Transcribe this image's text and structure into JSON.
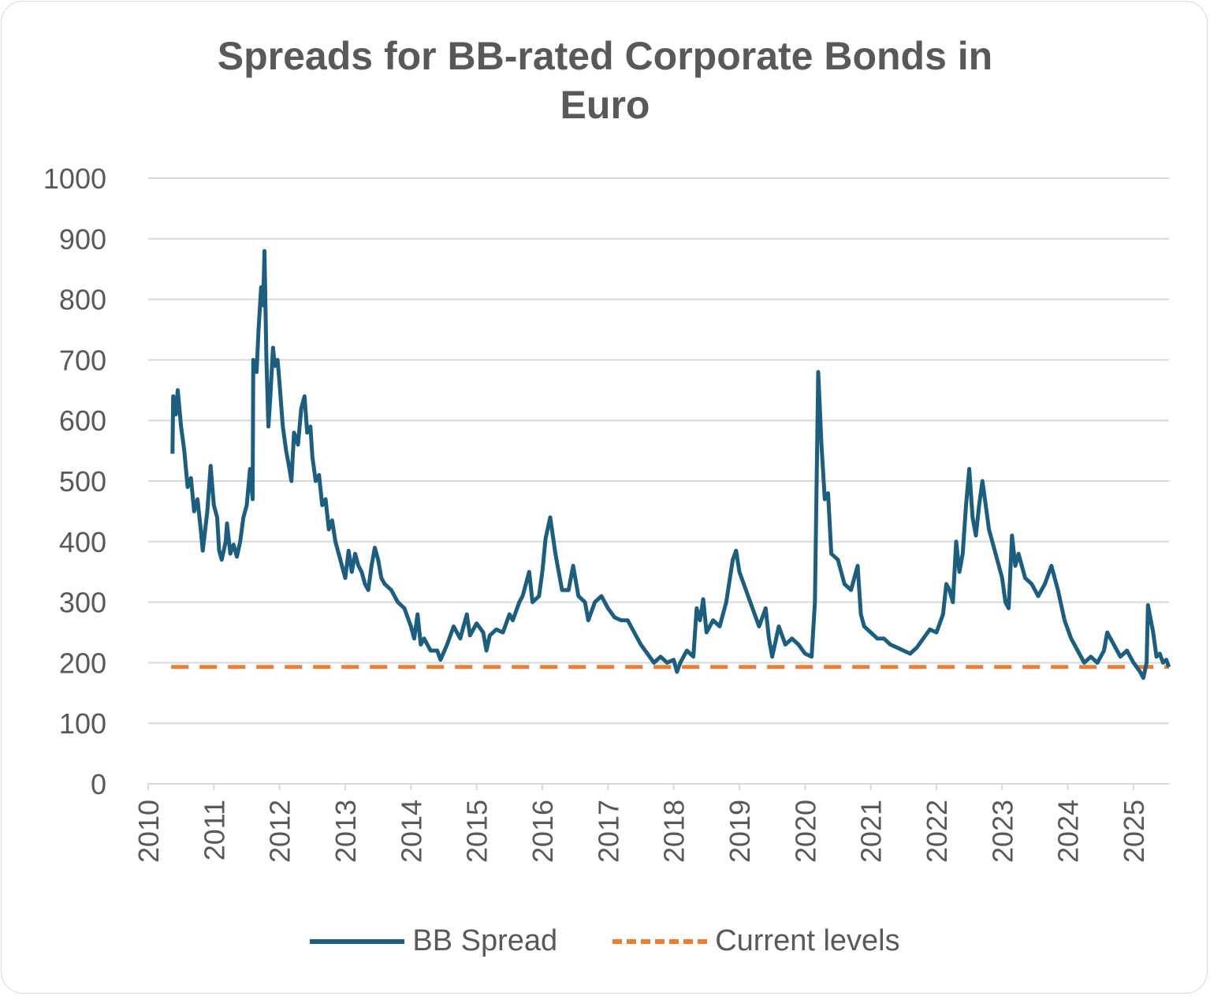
{
  "chart_data": {
    "type": "line",
    "title": "Spreads for BB-rated Corporate Bonds in Euro",
    "title_lines": [
      "Spreads for BB-rated Corporate Bonds in",
      "Euro"
    ],
    "xlabel": "",
    "ylabel": "",
    "ylim": [
      0,
      1000
    ],
    "xlim": [
      2010,
      2025.54
    ],
    "y_ticks": [
      "0",
      "100",
      "200",
      "300",
      "400",
      "500",
      "600",
      "700",
      "800",
      "900",
      "1000"
    ],
    "x_ticks": [
      "2010",
      "2011",
      "2012",
      "2013",
      "2014",
      "2015",
      "2016",
      "2017",
      "2018",
      "2019",
      "2020",
      "2021",
      "2022",
      "2023",
      "2024",
      "2025"
    ],
    "grid": "horizontal",
    "legend_position": "bottom",
    "colors": {
      "bb_spread": "#1b5e7f",
      "current_levels": "#ed7d31",
      "grid": "#d9d9d9",
      "text": "#595959"
    },
    "series": [
      {
        "name": "BB Spread",
        "style": "solid",
        "x": [
          2010.37,
          2010.38,
          2010.42,
          2010.45,
          2010.5,
          2010.55,
          2010.6,
          2010.65,
          2010.7,
          2010.75,
          2010.8,
          2010.83,
          2010.9,
          2010.95,
          2011.0,
          2011.05,
          2011.08,
          2011.12,
          2011.18,
          2011.2,
          2011.25,
          2011.3,
          2011.35,
          2011.4,
          2011.45,
          2011.5,
          2011.55,
          2011.59,
          2011.6,
          2011.65,
          2011.68,
          2011.72,
          2011.75,
          2011.77,
          2011.8,
          2011.83,
          2011.86,
          2011.9,
          2011.93,
          2011.97,
          2012.0,
          2012.05,
          2012.1,
          2012.15,
          2012.18,
          2012.22,
          2012.28,
          2012.33,
          2012.38,
          2012.42,
          2012.47,
          2012.5,
          2012.55,
          2012.6,
          2012.65,
          2012.7,
          2012.75,
          2012.8,
          2012.85,
          2012.9,
          2012.95,
          2013.0,
          2013.05,
          2013.1,
          2013.15,
          2013.2,
          2013.25,
          2013.3,
          2013.35,
          2013.4,
          2013.45,
          2013.5,
          2013.55,
          2013.6,
          2013.7,
          2013.8,
          2013.9,
          2014.0,
          2014.05,
          2014.1,
          2014.15,
          2014.2,
          2014.3,
          2014.4,
          2014.45,
          2014.55,
          2014.65,
          2014.75,
          2014.85,
          2014.9,
          2015.0,
          2015.1,
          2015.15,
          2015.2,
          2015.3,
          2015.4,
          2015.5,
          2015.55,
          2015.65,
          2015.7,
          2015.8,
          2015.85,
          2015.95,
          2016.0,
          2016.05,
          2016.12,
          2016.2,
          2016.25,
          2016.3,
          2016.4,
          2016.47,
          2016.55,
          2016.65,
          2016.7,
          2016.8,
          2016.9,
          2017.0,
          2017.1,
          2017.2,
          2017.3,
          2017.4,
          2017.5,
          2017.6,
          2017.7,
          2017.8,
          2017.9,
          2018.0,
          2018.05,
          2018.1,
          2018.2,
          2018.3,
          2018.35,
          2018.4,
          2018.45,
          2018.5,
          2018.6,
          2018.7,
          2018.8,
          2018.9,
          2018.95,
          2019.0,
          2019.1,
          2019.2,
          2019.3,
          2019.4,
          2019.45,
          2019.5,
          2019.6,
          2019.7,
          2019.8,
          2019.9,
          2020.0,
          2020.1,
          2020.15,
          2020.2,
          2020.25,
          2020.3,
          2020.35,
          2020.4,
          2020.5,
          2020.6,
          2020.7,
          2020.8,
          2020.85,
          2020.9,
          2021.0,
          2021.1,
          2021.2,
          2021.3,
          2021.4,
          2021.5,
          2021.6,
          2021.7,
          2021.8,
          2021.9,
          2022.0,
          2022.1,
          2022.15,
          2022.2,
          2022.25,
          2022.3,
          2022.35,
          2022.4,
          2022.45,
          2022.5,
          2022.55,
          2022.6,
          2022.65,
          2022.7,
          2022.75,
          2022.8,
          2022.9,
          2023.0,
          2023.05,
          2023.1,
          2023.15,
          2023.2,
          2023.25,
          2023.35,
          2023.45,
          2023.55,
          2023.65,
          2023.75,
          2023.85,
          2023.95,
          2024.05,
          2024.15,
          2024.25,
          2024.35,
          2024.45,
          2024.55,
          2024.6,
          2024.7,
          2024.8,
          2024.9,
          2025.0,
          2025.1,
          2025.15,
          2025.2,
          2025.22,
          2025.3,
          2025.35,
          2025.4,
          2025.45,
          2025.5,
          2025.54
        ],
        "y": [
          545,
          640,
          610,
          650,
          590,
          550,
          490,
          505,
          450,
          470,
          420,
          385,
          450,
          525,
          460,
          440,
          385,
          370,
          400,
          430,
          380,
          395,
          375,
          400,
          440,
          460,
          520,
          470,
          700,
          680,
          750,
          820,
          790,
          880,
          700,
          590,
          640,
          720,
          690,
          700,
          660,
          590,
          550,
          520,
          500,
          580,
          560,
          620,
          640,
          580,
          590,
          540,
          500,
          510,
          460,
          470,
          420,
          435,
          400,
          380,
          360,
          340,
          385,
          350,
          380,
          360,
          350,
          330,
          320,
          360,
          390,
          370,
          340,
          330,
          320,
          300,
          290,
          260,
          240,
          280,
          230,
          240,
          220,
          220,
          205,
          230,
          260,
          240,
          280,
          245,
          265,
          250,
          220,
          245,
          255,
          250,
          280,
          270,
          300,
          310,
          350,
          300,
          310,
          350,
          405,
          440,
          380,
          350,
          320,
          320,
          360,
          310,
          300,
          270,
          300,
          310,
          290,
          275,
          270,
          270,
          250,
          230,
          215,
          200,
          210,
          200,
          205,
          185,
          200,
          220,
          210,
          290,
          270,
          305,
          250,
          270,
          260,
          300,
          370,
          385,
          350,
          320,
          290,
          260,
          290,
          240,
          210,
          260,
          230,
          240,
          230,
          215,
          210,
          300,
          680,
          560,
          470,
          480,
          380,
          370,
          330,
          320,
          360,
          280,
          260,
          250,
          240,
          240,
          230,
          225,
          220,
          215,
          225,
          240,
          255,
          250,
          280,
          330,
          320,
          300,
          400,
          350,
          380,
          460,
          520,
          440,
          410,
          460,
          500,
          460,
          420,
          380,
          340,
          300,
          290,
          410,
          360,
          380,
          340,
          330,
          310,
          330,
          360,
          320,
          270,
          240,
          220,
          200,
          210,
          200,
          220,
          250,
          230,
          210,
          220,
          200,
          185,
          175,
          200,
          295,
          250,
          210,
          215,
          200,
          205,
          193
        ]
      },
      {
        "name": "Current levels",
        "style": "dashed",
        "value": 193
      }
    ]
  }
}
